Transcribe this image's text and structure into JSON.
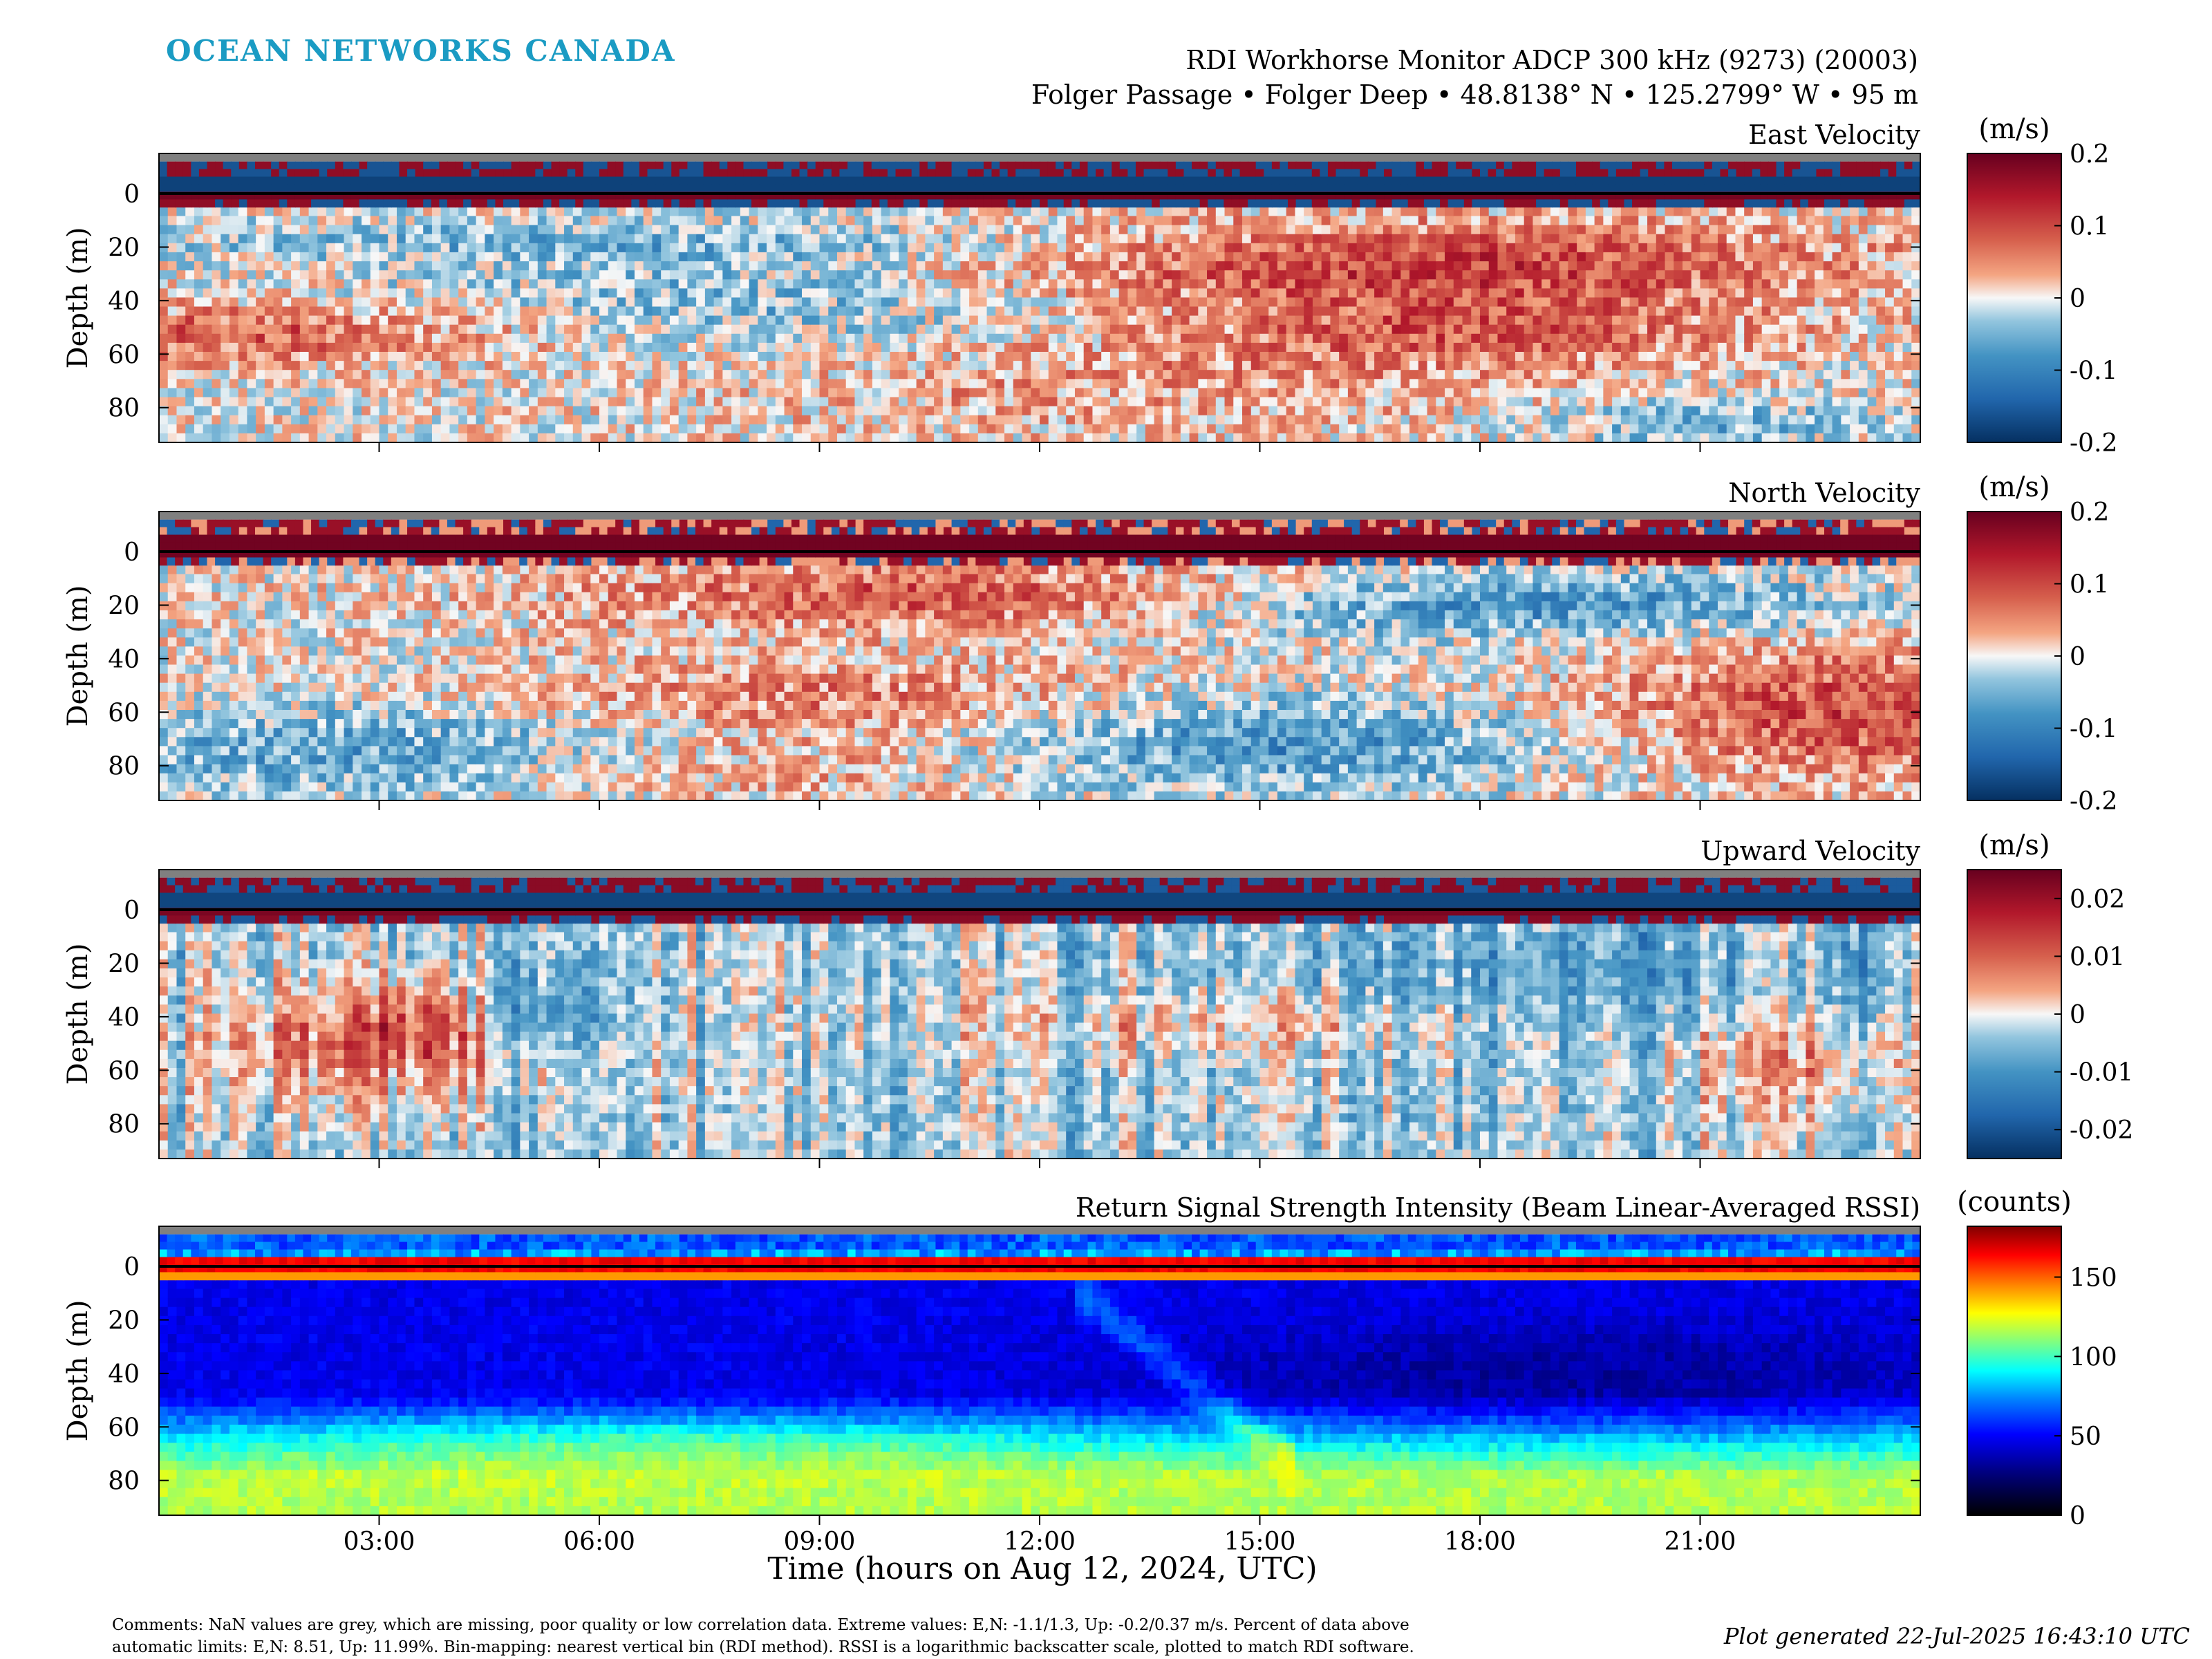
{
  "logo": {
    "text": "OCEAN NETWORKS CANADA",
    "color": "#1a9bc3"
  },
  "header": {
    "title": "RDI Workhorse Monitor ADCP 300 kHz (9273) (20003)",
    "subtitle": "Folger Passage • Folger Deep • 48.8138° N • 125.2799° W • 95 m"
  },
  "x_axis": {
    "label": "Time (hours on Aug 12, 2024, UTC)",
    "ticks": [
      {
        "hour": 3,
        "label": "03:00"
      },
      {
        "hour": 6,
        "label": "06:00"
      },
      {
        "hour": 9,
        "label": "09:00"
      },
      {
        "hour": 12,
        "label": "12:00"
      },
      {
        "hour": 15,
        "label": "15:00"
      },
      {
        "hour": 18,
        "label": "18:00"
      },
      {
        "hour": 21,
        "label": "21:00"
      }
    ]
  },
  "chart_data": [
    {
      "type": "heatmap",
      "title": "East Velocity",
      "ylabel": "Depth (m)",
      "xlim_hours": [
        0,
        24
      ],
      "ylim": [
        -15,
        93
      ],
      "yticks": [
        0,
        20,
        40,
        60,
        80
      ],
      "colormap": "red-blue diverging",
      "colorbar": {
        "label": "(m/s)",
        "min": -0.2,
        "max": 0.2,
        "ticks": [
          0.2,
          0.1,
          0,
          -0.1,
          -0.2
        ],
        "tick_labels": [
          "0.2",
          "0.1",
          "0",
          "-0.1",
          "-0.2"
        ]
      }
    },
    {
      "type": "heatmap",
      "title": "North Velocity",
      "ylabel": "Depth (m)",
      "xlim_hours": [
        0,
        24
      ],
      "ylim": [
        -15,
        93
      ],
      "yticks": [
        0,
        20,
        40,
        60,
        80
      ],
      "colormap": "red-blue diverging",
      "colorbar": {
        "label": "(m/s)",
        "min": -0.2,
        "max": 0.2,
        "ticks": [
          0.2,
          0.1,
          0,
          -0.1,
          -0.2
        ],
        "tick_labels": [
          "0.2",
          "0.1",
          "0",
          "-0.1",
          "-0.2"
        ]
      }
    },
    {
      "type": "heatmap",
      "title": "Upward Velocity",
      "ylabel": "Depth (m)",
      "xlim_hours": [
        0,
        24
      ],
      "ylim": [
        -15,
        93
      ],
      "yticks": [
        0,
        20,
        40,
        60,
        80
      ],
      "colormap": "red-blue diverging",
      "colorbar": {
        "label": "(m/s)",
        "min": -0.025,
        "max": 0.025,
        "ticks": [
          0.02,
          0.01,
          0,
          -0.01,
          -0.02
        ],
        "tick_labels": [
          "0.02",
          "0.01",
          "0",
          "-0.01",
          "-0.02"
        ]
      }
    },
    {
      "type": "heatmap",
      "title": "Return Signal Strength Intensity (Beam Linear-Averaged RSSI)",
      "ylabel": "Depth (m)",
      "xlim_hours": [
        0,
        24
      ],
      "ylim": [
        -15,
        93
      ],
      "yticks": [
        0,
        20,
        40,
        60,
        80
      ],
      "colormap": "jet",
      "colorbar": {
        "label": "(counts)",
        "min": 0,
        "max": 182,
        "ticks": [
          150,
          100,
          50,
          0
        ],
        "tick_labels": [
          "150",
          "100",
          "50",
          "0"
        ]
      }
    }
  ],
  "footer": {
    "comments_line1": "Comments: NaN values are grey, which are missing, poor quality or low correlation data. Extreme values: E,N: -1.1/1.3, Up: -0.2/0.37 m/s. Percent of data above",
    "comments_line2": "automatic limits: E,N: 8.51, Up: 11.99%. Bin-mapping: nearest vertical bin (RDI method). RSSI is a logarithmic backscatter scale, plotted to match RDI software.",
    "generated": "Plot generated 22-Jul-2025 16:43:10 UTC"
  },
  "colors": {
    "nan_grey": "#808080",
    "diverging_red": "#67001f",
    "diverging_blue": "#053061"
  }
}
